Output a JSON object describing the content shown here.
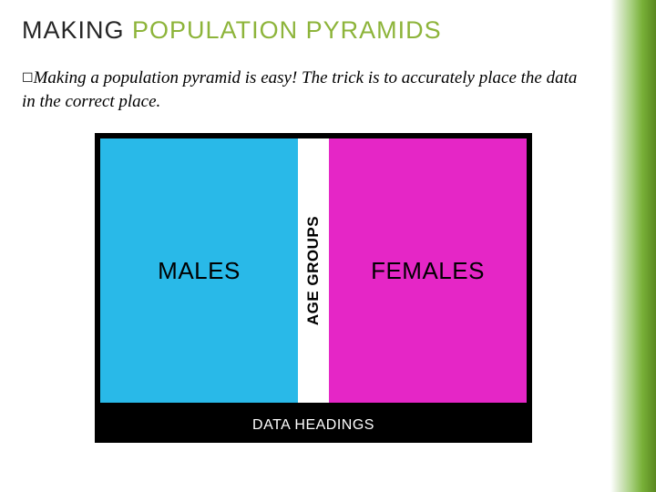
{
  "title": {
    "word1": "MAKING",
    "word2": "POPULATION",
    "word3": "PYRAMIDS"
  },
  "bullet_glyph": "☐",
  "body": {
    "lead_word": "Making",
    "rest": " a population pyramid is easy! The trick is to accurately place the data in the correct place."
  },
  "diagram": {
    "males_label": "MALES",
    "females_label": "FEMALES",
    "age_label": "AGE GROUPS",
    "bottom_label": "DATA HEADINGS",
    "males_color": "#29b9e8",
    "females_color": "#e526c6",
    "age_col_color": "#ffffff",
    "frame_color": "#000000"
  },
  "accent_color": "#8db43a",
  "side_gradient_colors": [
    "#ffffff",
    "#d8e8c8",
    "#a8d080",
    "#78b038",
    "#5a8820"
  ]
}
